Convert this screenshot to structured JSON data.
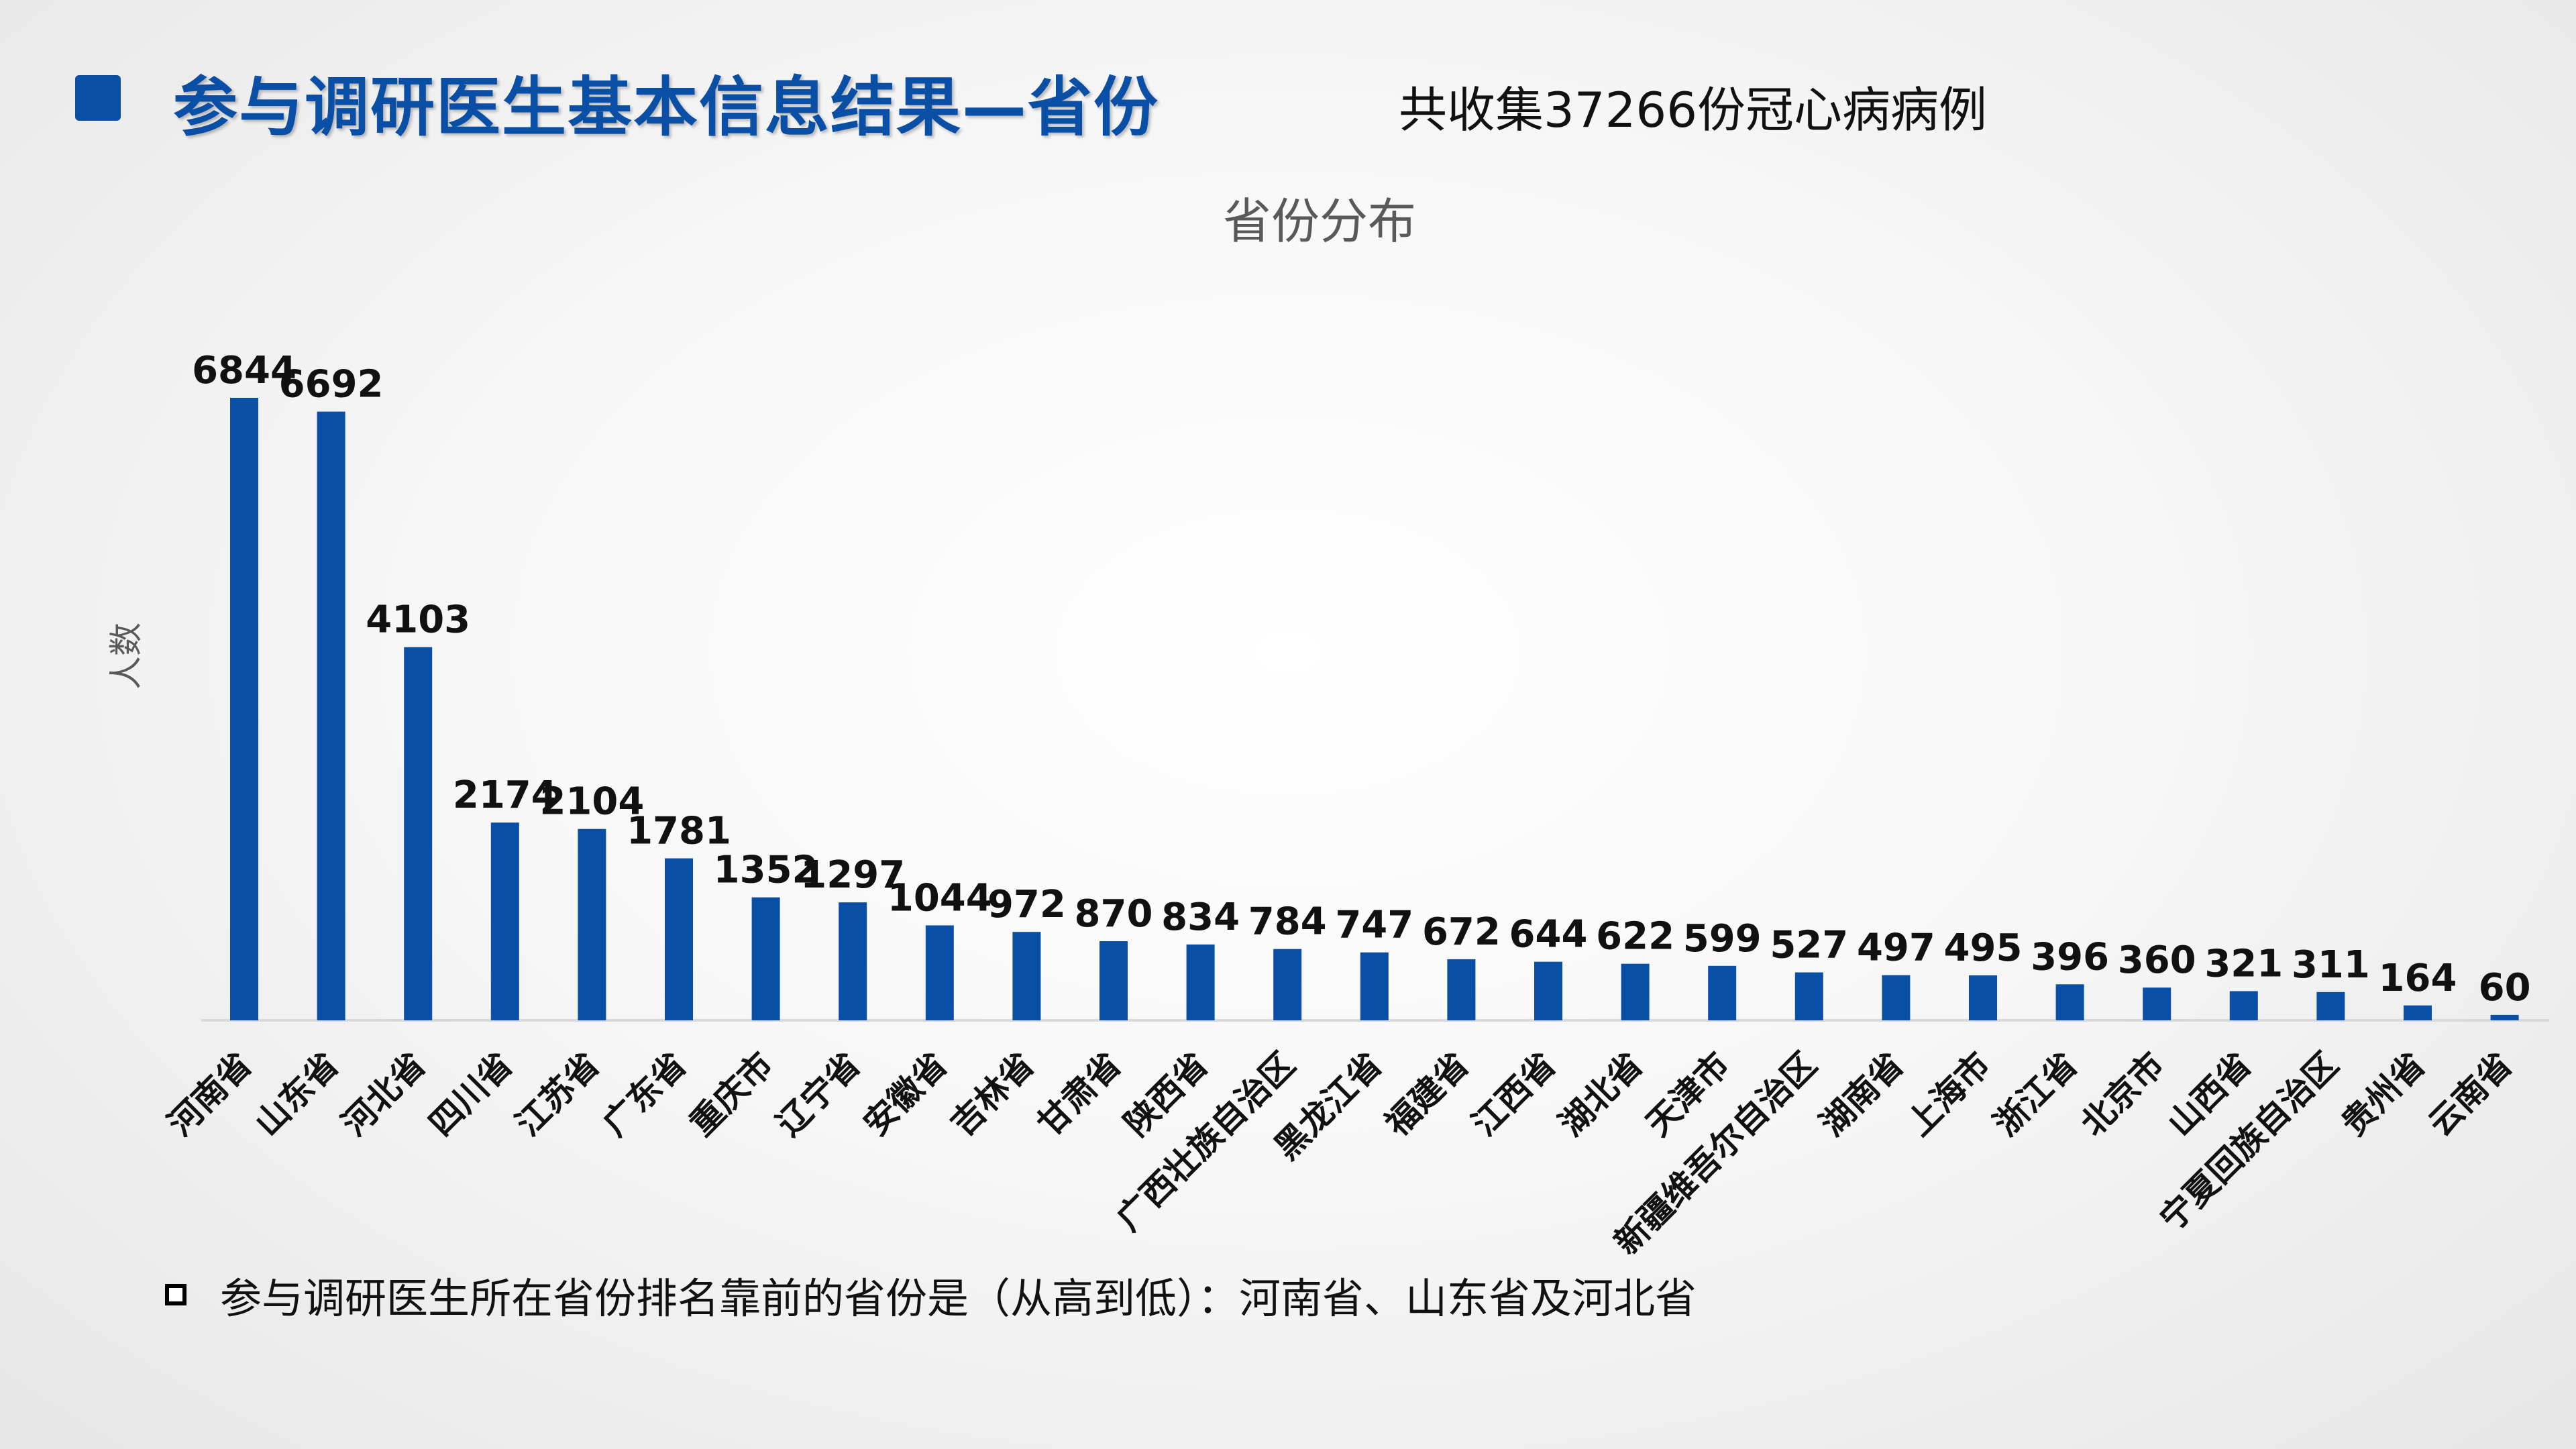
{
  "slide": {
    "title": "参与调研医生基本信息结果—省份",
    "subtitle": "共收集37266份冠心病病例",
    "footer_note": "参与调研医生所在省份排名靠前的省份是（从高到低）：河南省、山东省及河北省",
    "accent_color": "#0a4fa6"
  },
  "chart_data": {
    "type": "bar",
    "title": "省份分布",
    "ylabel": "人数",
    "xlabel": "",
    "ylim": [
      0,
      7500
    ],
    "grid": false,
    "legend": "none",
    "bar_color": "#0a4fa6",
    "categories": [
      "河南省",
      "山东省",
      "河北省",
      "四川省",
      "江苏省",
      "广东省",
      "重庆市",
      "辽宁省",
      "安徽省",
      "吉林省",
      "甘肃省",
      "陕西省",
      "广西壮族自治区",
      "黑龙江省",
      "福建省",
      "江西省",
      "湖北省",
      "天津市",
      "新疆维吾尔自治区",
      "湖南省",
      "上海市",
      "浙江省",
      "北京市",
      "山西省",
      "宁夏回族自治区",
      "贵州省",
      "云南省"
    ],
    "values": [
      6844,
      6692,
      4103,
      2174,
      2104,
      1781,
      1352,
      1297,
      1044,
      972,
      870,
      834,
      784,
      747,
      672,
      644,
      622,
      599,
      527,
      497,
      495,
      396,
      360,
      321,
      311,
      164,
      60
    ]
  }
}
